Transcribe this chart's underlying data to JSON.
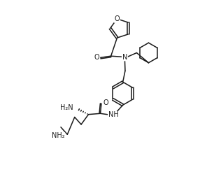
{
  "bg_color": "#ffffff",
  "line_color": "#1a1a1a",
  "line_width": 1.1,
  "font_size": 7.0,
  "fig_width": 2.86,
  "fig_height": 2.76,
  "dpi": 100,
  "xlim": [
    0,
    10
  ],
  "ylim": [
    0,
    10
  ]
}
